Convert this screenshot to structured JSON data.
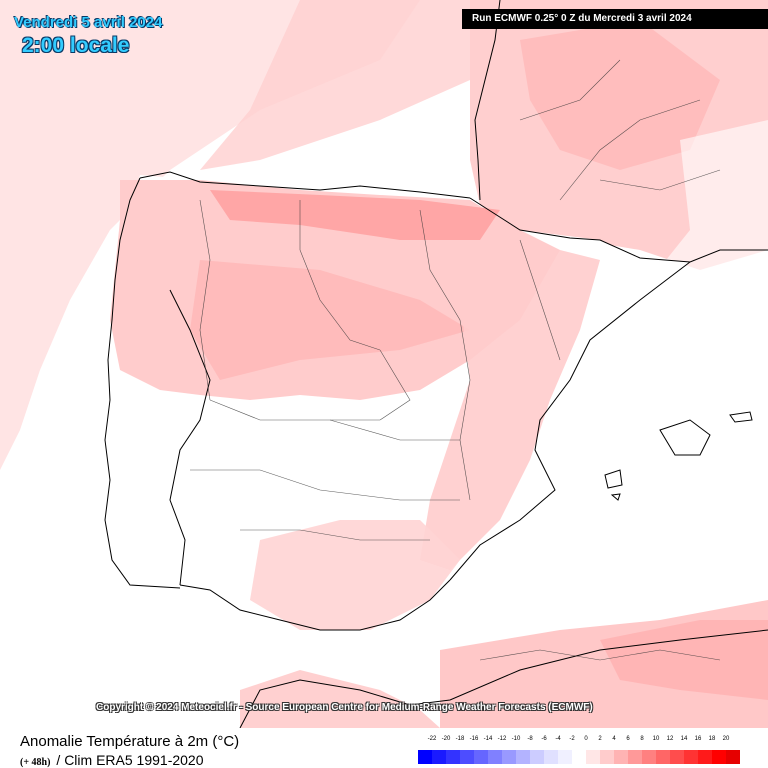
{
  "header": {
    "date": "Vendredi 5 avril 2024",
    "time": "2:00 locale",
    "run": "Run ECMWF 0.25° 0 Z du Mercredi 3 avril 2024"
  },
  "copyright": "Copyright © 2024 Meteociel.fr - Source European Centre for Medium-Range Weather Forecasts (ECMWF)",
  "footer": {
    "title": "Anomalie Température à 2m (°C)",
    "lead": "(+ 48h)",
    "clim": "/ Clim ERA5 1991-2020"
  },
  "legend": {
    "labels": [
      "-22",
      "-20",
      "-18",
      "-16",
      "-14",
      "-12",
      "-10",
      "-8",
      "-6",
      "-4",
      "-2",
      "0",
      "2",
      "4",
      "6",
      "8",
      "10",
      "12",
      "14",
      "16",
      "18",
      "20"
    ],
    "colors": [
      "#0000ff",
      "#1a1aff",
      "#3333ff",
      "#4d4dff",
      "#6666ff",
      "#8080ff",
      "#9999ff",
      "#b3b3ff",
      "#ccccff",
      "#e0e0ff",
      "#f0f0ff",
      "#ffffff",
      "#ffe6e6",
      "#ffcccc",
      "#ffb3b3",
      "#ff9999",
      "#ff8080",
      "#ff6666",
      "#ff4d4d",
      "#ff3333",
      "#ff1a1a",
      "#ff0000",
      "#e60000"
    ]
  },
  "colors": {
    "sea_anomaly": "#ffe4e4",
    "land_neutral": "#ffffff",
    "warm_light": "#ffd6d6",
    "warm_medium": "#ffbcbc",
    "warm_strong": "#ff9f9f",
    "border": "#000000"
  }
}
